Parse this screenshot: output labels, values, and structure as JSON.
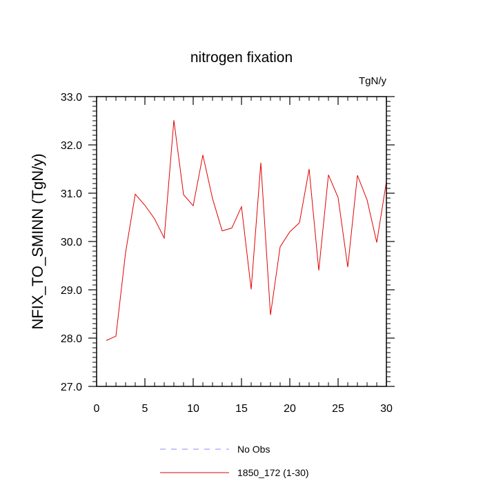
{
  "chart_data": {
    "type": "line",
    "title": "nitrogen fixation",
    "units": "TgN/y",
    "xlabel": "",
    "ylabel": "NFIX_TO_SMINN  (TgN/y)",
    "xlim": [
      0,
      30
    ],
    "ylim": [
      27.0,
      33.0
    ],
    "x_ticks": [
      0,
      5,
      10,
      15,
      20,
      25,
      30
    ],
    "y_ticks": [
      27.0,
      28.0,
      29.0,
      30.0,
      31.0,
      32.0,
      33.0
    ],
    "x_tick_labels": [
      "0",
      "5",
      "10",
      "15",
      "20",
      "25",
      "30"
    ],
    "y_tick_labels": [
      "27.0",
      "28.0",
      "29.0",
      "30.0",
      "31.0",
      "32.0",
      "33.0"
    ],
    "grid": false,
    "legend_position": "bottom-center",
    "series": [
      {
        "name": "No Obs",
        "color": "#8a8aff",
        "style": "dashed",
        "x": [],
        "values": []
      },
      {
        "name": "1850_172 (1-30)",
        "color": "#e00000",
        "style": "solid",
        "x": [
          1,
          2,
          3,
          4,
          5,
          6,
          7,
          8,
          9,
          10,
          11,
          12,
          13,
          14,
          15,
          16,
          17,
          18,
          19,
          20,
          21,
          22,
          23,
          24,
          25,
          26,
          27,
          28,
          29,
          30
        ],
        "values": [
          27.95,
          28.04,
          29.77,
          30.98,
          30.75,
          30.47,
          30.07,
          32.51,
          30.97,
          30.74,
          31.79,
          30.89,
          30.22,
          30.28,
          30.72,
          29.01,
          31.63,
          28.48,
          29.89,
          30.2,
          30.39,
          31.5,
          29.4,
          31.38,
          30.91,
          29.47,
          31.37,
          30.86,
          29.98,
          31.24
        ]
      }
    ]
  }
}
